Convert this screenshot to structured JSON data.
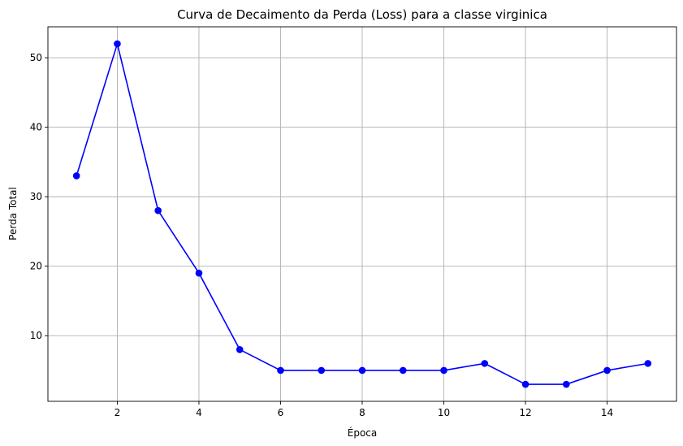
{
  "chart_data": {
    "type": "line",
    "title": "Curva de Decaimento da Perda (Loss) para a classe virginica",
    "xlabel": "Época",
    "ylabel": "Perda Total",
    "xlim": [
      0.3,
      15.7
    ],
    "ylim": [
      0.55,
      54.45
    ],
    "xticks": [
      2,
      4,
      6,
      8,
      10,
      12,
      14
    ],
    "yticks": [
      10,
      20,
      30,
      40,
      50
    ],
    "grid": true,
    "series": [
      {
        "color": "#0000ff",
        "marker": "circle",
        "x": [
          1,
          2,
          3,
          4,
          5,
          6,
          7,
          8,
          9,
          10,
          11,
          12,
          13,
          14,
          15
        ],
        "y": [
          33,
          52,
          28,
          19,
          8,
          5,
          5,
          5,
          5,
          5,
          6,
          3,
          3,
          5,
          6
        ]
      }
    ]
  }
}
